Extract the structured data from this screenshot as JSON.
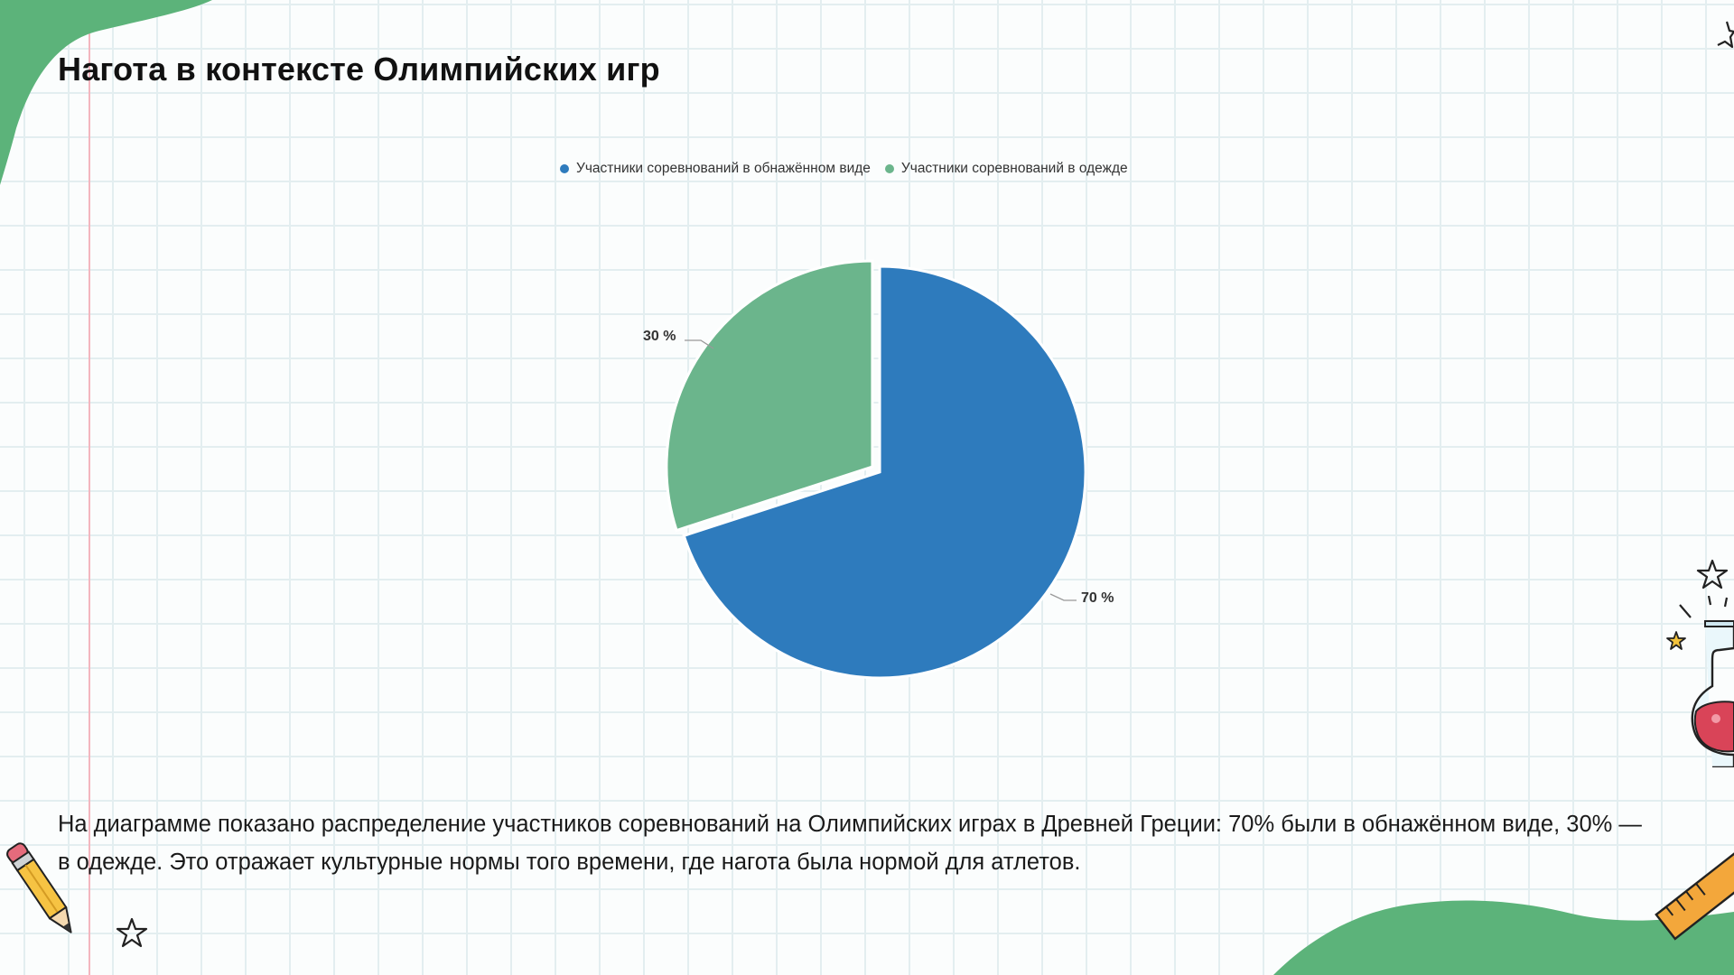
{
  "slide": {
    "title": "Нагота в контексте Олимпийских игр",
    "description": "На диаграмме показано распределение участников соревнований на Олимпийских играх в Древней Греции: 70% были в обнажённом виде, 30% — в одежде. Это отражает культурные нормы того времени, где нагота была нормой для атлетов."
  },
  "chart_data": {
    "type": "pie",
    "labels": [
      "Участники соревнований в обнажённом виде",
      "Участники соревнований в одежде"
    ],
    "values": [
      70,
      30
    ],
    "data_labels": [
      "70 %",
      "30 %"
    ],
    "colors": [
      "#2e7bbd",
      "#6bb58c"
    ],
    "legend_position": "top"
  },
  "decor": {
    "blob_color": "#5cb37a",
    "gridline_color": "#e3eef0",
    "margin_line_color": "#f3b6bf",
    "icons": [
      "star-icon",
      "pencil-icon",
      "flask-icon",
      "ruler-icon"
    ]
  }
}
